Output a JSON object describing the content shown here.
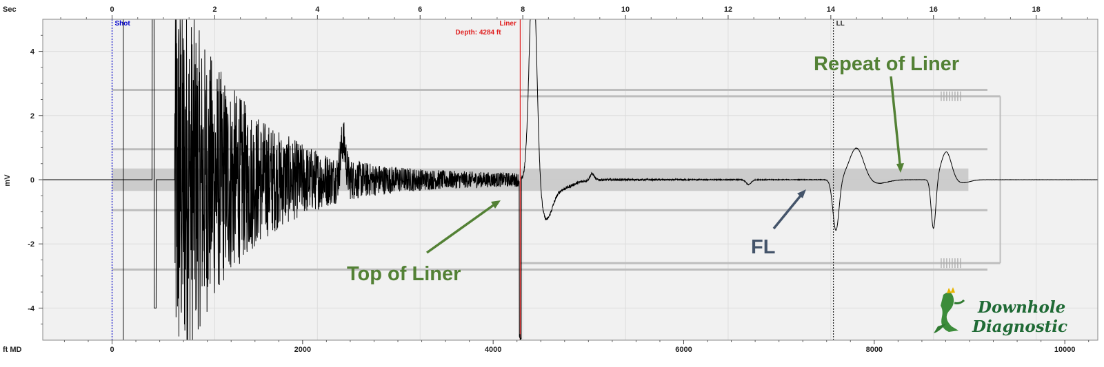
{
  "chart_data": {
    "type": "line",
    "x_top": {
      "label": "Sec",
      "ticks": [
        0,
        2,
        4,
        6,
        8,
        10,
        12,
        14,
        16,
        18
      ],
      "range": [
        -1.35,
        19.2
      ]
    },
    "x_bottom": {
      "label": "ft MD",
      "ticks": [
        0,
        2000,
        4000,
        6000,
        8000,
        10000
      ]
    },
    "y": {
      "label": "mV",
      "ticks": [
        4,
        2,
        0,
        -2,
        -4
      ],
      "range": [
        -5,
        5
      ]
    },
    "grid": true,
    "markers": [
      {
        "name": "Shot",
        "text": "Shot",
        "t": 0.0,
        "color": "#0000cc",
        "style": "dotted"
      },
      {
        "name": "Liner",
        "text": "Liner",
        "subtext": "Depth: 4284 ft",
        "t": 7.95,
        "color": "#e02020",
        "style": "solid"
      },
      {
        "name": "LL",
        "text": "LL",
        "t": 14.05,
        "color": "#222222",
        "style": "dotted"
      }
    ],
    "annotations": [
      {
        "name": "top-of-liner",
        "text": "Top of Liner",
        "color": "#538135"
      },
      {
        "name": "fl",
        "text": "FL",
        "color": "#44546a"
      },
      {
        "name": "repeat-of-liner",
        "text": "Repeat of Liner",
        "color": "#538135"
      }
    ],
    "signal": {
      "color": "#000000",
      "baseline": 0.0,
      "events": [
        {
          "t": 0.82,
          "peak": 5,
          "trough": -4.0
        },
        {
          "t": 1.22,
          "peak": 5,
          "note": "shot arrival, decaying oscillation"
        },
        {
          "t": 7.95,
          "peak": 5,
          "trough": -4.9
        },
        {
          "t": 8.45,
          "trough": -0.95
        },
        {
          "t": 14.1,
          "trough": -1.6
        },
        {
          "t": 14.5,
          "peak": 1.0
        },
        {
          "t": 16.0,
          "trough": -1.55
        },
        {
          "t": 16.25,
          "peak": 0.88
        }
      ]
    }
  },
  "logo": {
    "line1": "Downhole",
    "line2": "Diagnostic"
  }
}
